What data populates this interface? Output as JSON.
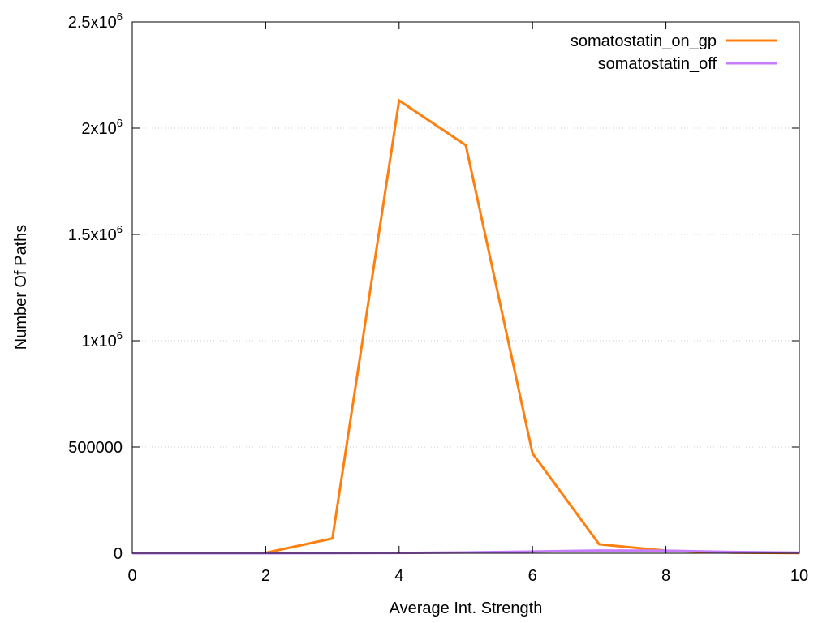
{
  "chart_data": {
    "type": "line",
    "title": "",
    "xlabel": "Average Int. Strength",
    "ylabel": "Number Of Paths",
    "xlim": [
      0,
      10
    ],
    "ylim": [
      0,
      2500000
    ],
    "grid": true,
    "legend_position": "top-right",
    "x_ticks": [
      {
        "value": 0,
        "label": "0"
      },
      {
        "value": 2,
        "label": "2"
      },
      {
        "value": 4,
        "label": "4"
      },
      {
        "value": 6,
        "label": "6"
      },
      {
        "value": 8,
        "label": "8"
      },
      {
        "value": 10,
        "label": "10"
      }
    ],
    "y_ticks": [
      {
        "value": 0,
        "label": "0",
        "exp": ""
      },
      {
        "value": 500000,
        "label": "500000",
        "exp": ""
      },
      {
        "value": 1000000,
        "label": "1x10",
        "exp": "6"
      },
      {
        "value": 1500000,
        "label": "1.5x10",
        "exp": "6"
      },
      {
        "value": 2000000,
        "label": "2x10",
        "exp": "6"
      },
      {
        "value": 2500000,
        "label": "2.5x10",
        "exp": "6"
      }
    ],
    "series": [
      {
        "name": "somatostatin_on_gp",
        "color": "#ff7f0e",
        "x": [
          0,
          1,
          2,
          3,
          4,
          5,
          6,
          7,
          8,
          9,
          10
        ],
        "y": [
          0,
          0,
          2000,
          70000,
          2130000,
          1920000,
          470000,
          42000,
          12000,
          3000,
          1000
        ]
      },
      {
        "name": "somatostatin_off",
        "color": "#c77cff",
        "x": [
          0,
          1,
          2,
          3,
          4,
          5,
          6,
          7,
          8,
          9,
          10
        ],
        "y": [
          0,
          0,
          0,
          500,
          1500,
          4000,
          8000,
          13000,
          12000,
          6000,
          3000
        ]
      }
    ]
  }
}
